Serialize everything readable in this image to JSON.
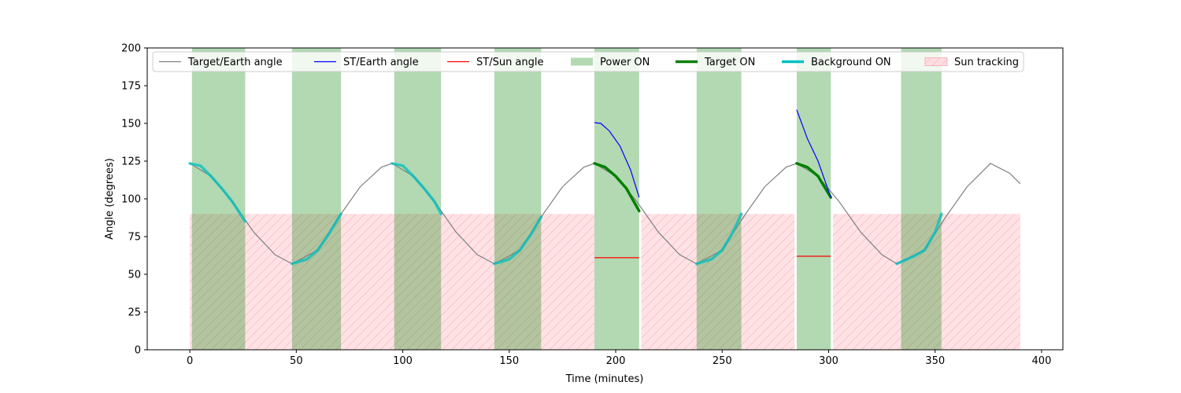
{
  "chart_data": {
    "type": "line",
    "title": "",
    "xlabel": "Time (minutes)",
    "ylabel": "Angle (degrees)",
    "xlim": [
      -20,
      410
    ],
    "ylim": [
      0,
      200
    ],
    "x_ticks": [
      0,
      50,
      100,
      150,
      200,
      250,
      300,
      350,
      400
    ],
    "y_ticks": [
      0,
      25,
      50,
      75,
      100,
      125,
      150,
      175,
      200
    ],
    "grid": false,
    "legend_position": "top",
    "legend": [
      {
        "label": "Target/Earth angle",
        "kind": "line",
        "color": "#808080"
      },
      {
        "label": "ST/Earth angle",
        "kind": "line",
        "color": "#0000ff"
      },
      {
        "label": "ST/Sun angle",
        "kind": "line",
        "color": "#ff0000"
      },
      {
        "label": "Power ON",
        "kind": "patch",
        "color": "#b3d9b3"
      },
      {
        "label": "Target ON",
        "kind": "thickline",
        "color": "#008000"
      },
      {
        "label": "Background ON",
        "kind": "thickline",
        "color": "#00bfbf"
      },
      {
        "label": "Sun tracking",
        "kind": "hatch",
        "color": "#ffdde1"
      }
    ],
    "target_earth_angle": {
      "color": "#808080",
      "points": [
        [
          0,
          123.5
        ],
        [
          10,
          115
        ],
        [
          20,
          98
        ],
        [
          30,
          78
        ],
        [
          40,
          63
        ],
        [
          48,
          57
        ],
        [
          60,
          66
        ],
        [
          70,
          88
        ],
        [
          80,
          108
        ],
        [
          90,
          121
        ],
        [
          95,
          123.5
        ],
        [
          105,
          115
        ],
        [
          115,
          98
        ],
        [
          125,
          78
        ],
        [
          135,
          63
        ],
        [
          143,
          57
        ],
        [
          155,
          66
        ],
        [
          165,
          88
        ],
        [
          175,
          108
        ],
        [
          185,
          121
        ],
        [
          190,
          123.5
        ],
        [
          200,
          115
        ],
        [
          210,
          98
        ],
        [
          220,
          78
        ],
        [
          230,
          63
        ],
        [
          238,
          57
        ],
        [
          250,
          66
        ],
        [
          260,
          88
        ],
        [
          270,
          108
        ],
        [
          280,
          121
        ],
        [
          285,
          123.5
        ],
        [
          295,
          115
        ],
        [
          305,
          98
        ],
        [
          315,
          78
        ],
        [
          325,
          63
        ],
        [
          332,
          57
        ],
        [
          345,
          66
        ],
        [
          355,
          88
        ],
        [
          365,
          108
        ],
        [
          376,
          123.5
        ],
        [
          385,
          117
        ],
        [
          390,
          110
        ]
      ]
    },
    "power_on_intervals": [
      [
        1,
        26
      ],
      [
        48,
        71
      ],
      [
        96,
        118
      ],
      [
        143,
        165
      ],
      [
        190,
        211
      ],
      [
        238,
        259
      ],
      [
        285,
        301
      ],
      [
        334,
        353
      ]
    ],
    "sun_tracking_intervals": [
      [
        0,
        190
      ],
      [
        212,
        284
      ],
      [
        302,
        390
      ]
    ],
    "sun_tracking_level": 90,
    "background_on_segments": [
      [
        [
          0,
          123.5
        ],
        [
          5,
          122
        ],
        [
          10,
          115
        ],
        [
          15,
          107
        ],
        [
          20,
          98
        ],
        [
          26,
          85
        ]
      ],
      [
        [
          48,
          57
        ],
        [
          55,
          60
        ],
        [
          60,
          66
        ],
        [
          65,
          76
        ],
        [
          71,
          90
        ]
      ],
      [
        [
          95,
          123.5
        ],
        [
          100,
          122
        ],
        [
          105,
          115
        ],
        [
          110,
          107
        ],
        [
          115,
          98
        ],
        [
          118,
          90
        ]
      ],
      [
        [
          143,
          57
        ],
        [
          150,
          60
        ],
        [
          155,
          66
        ],
        [
          160,
          76
        ],
        [
          165,
          88
        ]
      ],
      [
        [
          238,
          57
        ],
        [
          245,
          60
        ],
        [
          250,
          66
        ],
        [
          255,
          78
        ],
        [
          259,
          90
        ]
      ],
      [
        [
          332,
          57
        ],
        [
          340,
          62
        ],
        [
          345,
          66
        ],
        [
          350,
          78
        ],
        [
          353,
          90
        ]
      ]
    ],
    "target_on_segments": [
      [
        [
          190,
          123.5
        ],
        [
          195,
          121
        ],
        [
          200,
          115
        ],
        [
          205,
          107
        ],
        [
          211,
          92
        ]
      ],
      [
        [
          285,
          123.5
        ],
        [
          290,
          121
        ],
        [
          295,
          115
        ],
        [
          301,
          101
        ]
      ]
    ],
    "st_earth_angle_segments": [
      [
        [
          190,
          150.5
        ],
        [
          193,
          150
        ],
        [
          197,
          145
        ],
        [
          202,
          135
        ],
        [
          207,
          119
        ],
        [
          211,
          101
        ]
      ],
      [
        [
          285,
          159
        ],
        [
          290,
          140
        ],
        [
          295,
          125
        ],
        [
          301,
          101
        ]
      ]
    ],
    "st_sun_angle_segments": [
      [
        [
          190,
          61
        ],
        [
          211,
          61
        ]
      ],
      [
        [
          285,
          62
        ],
        [
          301,
          62
        ]
      ]
    ]
  }
}
